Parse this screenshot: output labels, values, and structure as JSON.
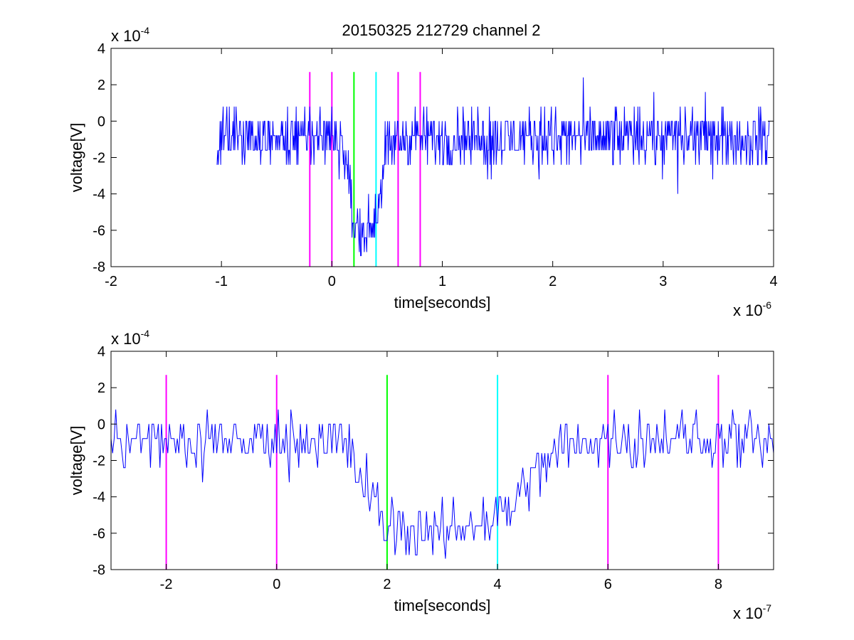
{
  "figure_title": "20150325 212729 channel 2",
  "colors": {
    "signal": "#0000ff",
    "marker_magenta": "#ff00ff",
    "marker_green": "#00ff00",
    "marker_cyan": "#00ffff",
    "axes": "#000000",
    "background": "#ffffff"
  },
  "chart_data": [
    {
      "type": "line",
      "title": "20150325 212729 channel 2",
      "xlabel": "time[seconds]",
      "ylabel": "voltage[V]",
      "x_multiplier_label": "x 10",
      "x_multiplier_exponent": "-6",
      "y_multiplier_label": "x 10",
      "y_multiplier_exponent": "-4",
      "xlim": [
        -2,
        4
      ],
      "ylim": [
        -8,
        4
      ],
      "x_ticks": [
        -2,
        -1,
        0,
        1,
        2,
        3,
        4
      ],
      "x_tick_labels": [
        "-2",
        "-1",
        "0",
        "1",
        "2",
        "3",
        "4"
      ],
      "y_ticks": [
        -8,
        -6,
        -4,
        -2,
        0,
        2,
        4
      ],
      "y_tick_labels": [
        "-8",
        "-6",
        "-4",
        "-2",
        "0",
        "2",
        "4"
      ],
      "grid": false,
      "legend": "none",
      "markers": [
        {
          "x": -0.2,
          "color": "#ff00ff"
        },
        {
          "x": 0.0,
          "color": "#ff00ff"
        },
        {
          "x": 0.2,
          "color": "#00ff00"
        },
        {
          "x": 0.4,
          "color": "#00ffff"
        },
        {
          "x": 0.6,
          "color": "#ff00ff"
        },
        {
          "x": 0.8,
          "color": "#ff00ff"
        }
      ],
      "marker_range": [
        -8,
        2.7
      ],
      "series": [
        {
          "color": "#0000ff",
          "x_start": -1.04,
          "x_end": 3.96,
          "profile": [
            [
              -1.05,
              -0.8
            ],
            [
              -0.3,
              -0.9
            ],
            [
              -0.15,
              -0.9
            ],
            [
              0.05,
              -1.0
            ],
            [
              0.12,
              -1.6
            ],
            [
              0.16,
              -3.6
            ],
            [
              0.2,
              -5.8
            ],
            [
              0.25,
              -6.2
            ],
            [
              0.3,
              -6.0
            ],
            [
              0.38,
              -5.6
            ],
            [
              0.43,
              -3.8
            ],
            [
              0.48,
              -2.0
            ],
            [
              0.55,
              -1.1
            ],
            [
              0.7,
              -0.9
            ],
            [
              4.0,
              -0.9
            ]
          ],
          "values_note_units": "x 1e-4 V, x in 1e-6 s"
        }
      ]
    },
    {
      "type": "line",
      "xlabel": "time[seconds]",
      "ylabel": "voltage[V]",
      "x_multiplier_label": "x 10",
      "x_multiplier_exponent": "-7",
      "y_multiplier_label": "x 10",
      "y_multiplier_exponent": "-4",
      "xlim": [
        -3,
        9
      ],
      "ylim": [
        -8,
        4
      ],
      "x_ticks": [
        -2,
        0,
        2,
        4,
        6,
        8
      ],
      "x_tick_labels": [
        "-2",
        "0",
        "2",
        "4",
        "6",
        "8"
      ],
      "y_ticks": [
        -8,
        -6,
        -4,
        -2,
        0,
        2,
        4
      ],
      "y_tick_labels": [
        "-8",
        "-6",
        "-4",
        "-2",
        "0",
        "2",
        "4"
      ],
      "grid": false,
      "legend": "none",
      "markers": [
        {
          "x": -2,
          "color": "#ff00ff"
        },
        {
          "x": 0,
          "color": "#ff00ff"
        },
        {
          "x": 2,
          "color": "#00ff00"
        },
        {
          "x": 4,
          "color": "#00ffff"
        },
        {
          "x": 6,
          "color": "#ff00ff"
        },
        {
          "x": 8,
          "color": "#ff00ff"
        }
      ],
      "marker_range": [
        -8,
        2.7
      ],
      "series": [
        {
          "color": "#0000ff",
          "x_start": -3,
          "x_end": 9,
          "profile": [
            [
              -3,
              -1.0
            ],
            [
              -0.5,
              -1.0
            ],
            [
              1.2,
              -0.9
            ],
            [
              1.5,
              -2.6
            ],
            [
              1.8,
              -4.6
            ],
            [
              2.0,
              -5.6
            ],
            [
              2.5,
              -6.0
            ],
            [
              3.0,
              -6.1
            ],
            [
              3.6,
              -5.4
            ],
            [
              4.0,
              -5.0
            ],
            [
              4.4,
              -4.0
            ],
            [
              4.8,
              -2.2
            ],
            [
              5.2,
              -1.2
            ],
            [
              6.0,
              -0.8
            ],
            [
              9,
              -0.9
            ]
          ],
          "values_note_units": "x 1e-4 V, x in 1e-7 s"
        }
      ]
    }
  ]
}
